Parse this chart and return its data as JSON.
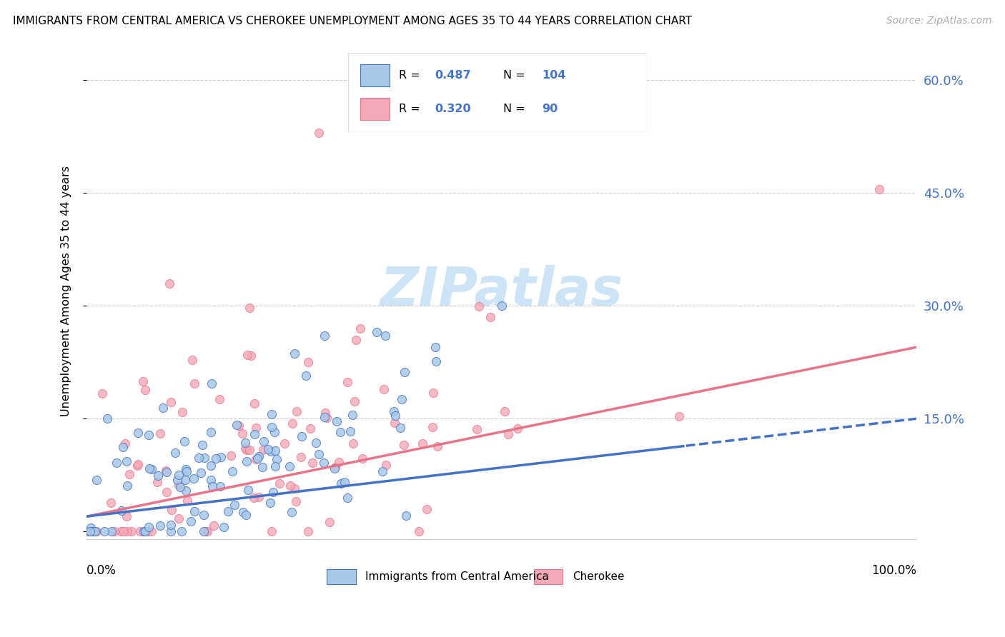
{
  "title": "IMMIGRANTS FROM CENTRAL AMERICA VS CHEROKEE UNEMPLOYMENT AMONG AGES 35 TO 44 YEARS CORRELATION CHART",
  "source": "Source: ZipAtlas.com",
  "ylabel": "Unemployment Among Ages 35 to 44 years",
  "right_yticks": [
    0.0,
    0.15,
    0.3,
    0.45,
    0.6
  ],
  "right_yticklabels": [
    "",
    "15.0%",
    "30.0%",
    "45.0%",
    "60.0%"
  ],
  "xlim": [
    0.0,
    1.0
  ],
  "ylim": [
    -0.01,
    0.65
  ],
  "blue_R": 0.487,
  "blue_N": 104,
  "pink_R": 0.32,
  "pink_N": 90,
  "blue_color": "#a8c8e8",
  "pink_color": "#f4a8b8",
  "blue_edge_color": "#4472c4",
  "pink_edge_color": "#e8748a",
  "blue_line_color": "#4472c4",
  "pink_line_color": "#e8748a",
  "legend_text_color": "#4472c4",
  "watermark_color": "#cce4f5",
  "legend_label_blue": "Immigrants from Central America",
  "legend_label_pink": "Cherokee",
  "blue_trend_slope": 0.13,
  "blue_trend_intercept": 0.02,
  "blue_trend_split": 0.72,
  "pink_trend_slope": 0.225,
  "pink_trend_intercept": 0.02
}
